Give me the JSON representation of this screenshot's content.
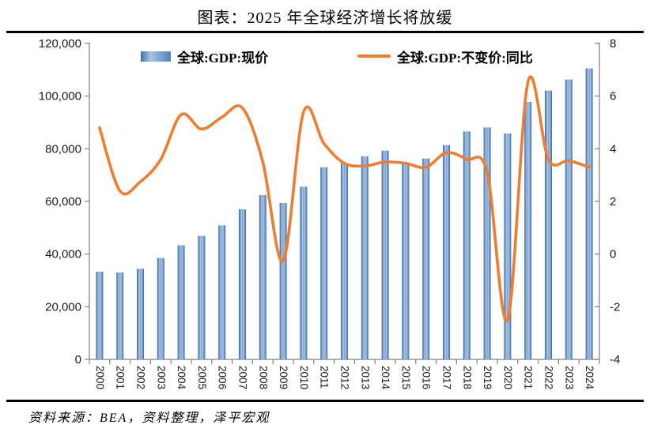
{
  "page": {
    "title": "图表：2025 年全球经济增长将放缓",
    "source_note": "资料来源：BEA，资料整理，泽平宏观"
  },
  "legend": {
    "bar_label": "全球:GDP:现价",
    "line_label": "全球:GDP:不变价:同比"
  },
  "colors": {
    "bar_edge": "#3e6fa9",
    "bar_mid_edge": "#5f8cc1",
    "bar_light": "#b0c8e4",
    "bar_center": "#79a0cf",
    "line": "#ED7D31",
    "axis": "#808080",
    "label_text": "#1a1a1a",
    "divider": "#000000"
  },
  "chart_data": {
    "type": "bar+line",
    "title": "图表：2025 年全球经济增长将放缓",
    "categories": [
      "2000",
      "2001",
      "2002",
      "2003",
      "2004",
      "2005",
      "2006",
      "2007",
      "2008",
      "2009",
      "2010",
      "2011",
      "2012",
      "2013",
      "2014",
      "2015",
      "2016",
      "2017",
      "2018",
      "2019",
      "2020",
      "2021",
      "2022",
      "2023",
      "2024"
    ],
    "series": [
      {
        "name": "全球:GDP:现价",
        "type": "bar",
        "axis": "left",
        "values": [
          33300,
          33000,
          34400,
          38500,
          43300,
          46900,
          50900,
          57000,
          62400,
          59400,
          65600,
          73000,
          74400,
          77100,
          79300,
          74600,
          76300,
          81400,
          86600,
          88100,
          85800,
          97800,
          102100,
          106300,
          110500
        ]
      },
      {
        "name": "全球:GDP:不变价:同比",
        "type": "line",
        "axis": "right",
        "values": [
          4.8,
          2.4,
          2.75,
          3.6,
          5.3,
          4.75,
          5.2,
          5.55,
          3.5,
          -0.25,
          5.4,
          4.2,
          3.45,
          3.35,
          3.5,
          3.45,
          3.3,
          3.85,
          3.6,
          3.1,
          -2.5,
          6.55,
          3.6,
          3.55,
          3.3
        ]
      }
    ],
    "left_axis": {
      "min": 0,
      "max": 120000,
      "step": 20000,
      "tick_labels": [
        "0",
        "20,000",
        "40,000",
        "60,000",
        "80,000",
        "100,000",
        "120,000"
      ]
    },
    "right_axis": {
      "min": -4,
      "max": 8,
      "step": 2,
      "tick_labels": [
        "-4",
        "-2",
        "0",
        "2",
        "4",
        "6",
        "8"
      ]
    },
    "xlabel": "",
    "ylabel": "",
    "grid": false,
    "legend_position": "top"
  }
}
